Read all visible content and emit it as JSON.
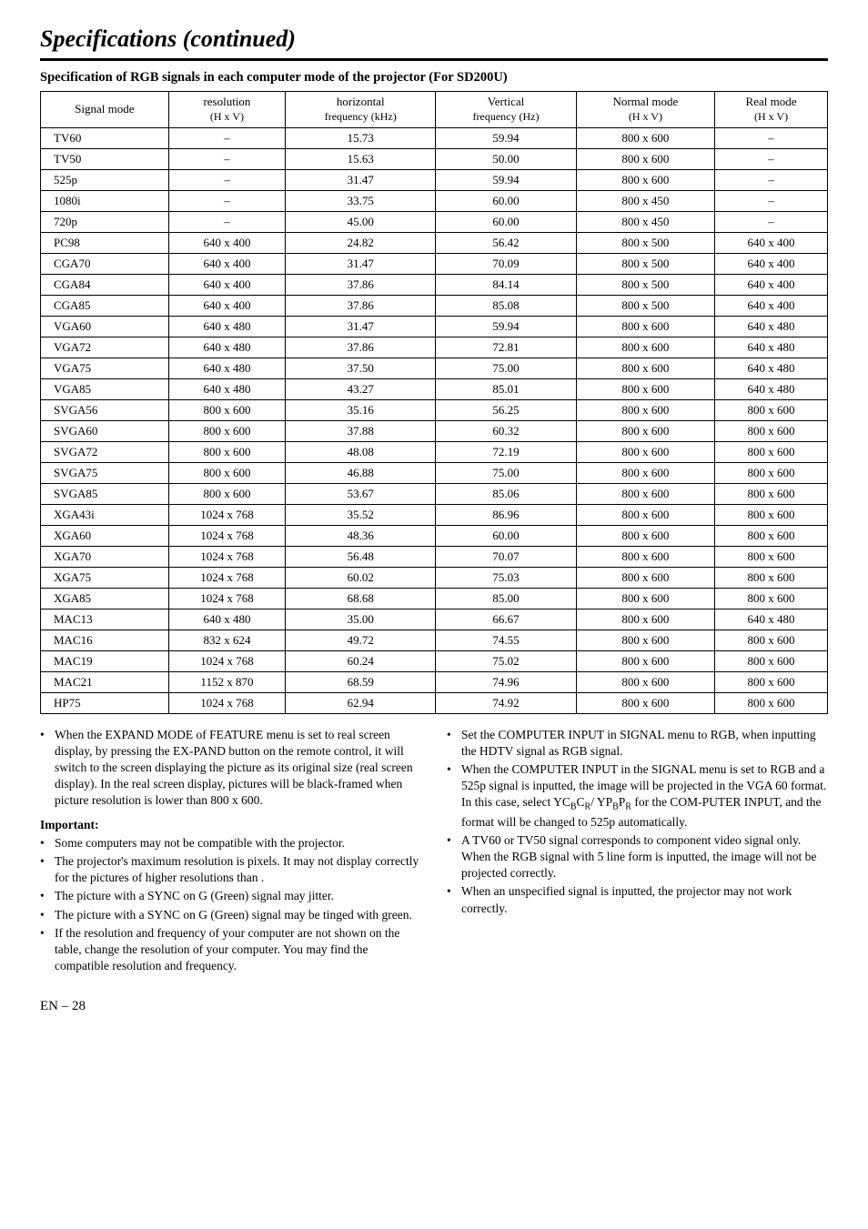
{
  "title": "Specifications (continued)",
  "subtitle": "Specification of RGB signals in each computer mode of the projector (For SD200U)",
  "table": {
    "headers": [
      {
        "line1": "Signal mode",
        "line2": ""
      },
      {
        "line1": "resolution",
        "line2": "(H x V)"
      },
      {
        "line1": "horizontal",
        "line2": "frequency (kHz)"
      },
      {
        "line1": "Vertical",
        "line2": "frequency (Hz)"
      },
      {
        "line1": "Normal mode",
        "line2": "(H x V)"
      },
      {
        "line1": "Real mode",
        "line2": "(H x V)"
      }
    ],
    "rows": [
      [
        "TV60",
        "–",
        "15.73",
        "59.94",
        "800 x 600",
        "–"
      ],
      [
        "TV50",
        "–",
        "15.63",
        "50.00",
        "800 x 600",
        "–"
      ],
      [
        "525p",
        "–",
        "31.47",
        "59.94",
        "800 x 600",
        "–"
      ],
      [
        "1080i",
        "–",
        "33.75",
        "60.00",
        "800 x 450",
        "–"
      ],
      [
        "720p",
        "–",
        "45.00",
        "60.00",
        "800 x 450",
        "–"
      ],
      [
        "PC98",
        "640 x 400",
        "24.82",
        "56.42",
        "800 x 500",
        "640 x 400"
      ],
      [
        "CGA70",
        "640 x 400",
        "31.47",
        "70.09",
        "800 x 500",
        "640 x 400"
      ],
      [
        "CGA84",
        "640 x 400",
        "37.86",
        "84.14",
        "800 x 500",
        "640 x 400"
      ],
      [
        "CGA85",
        "640 x 400",
        "37.86",
        "85.08",
        "800 x 500",
        "640 x 400"
      ],
      [
        "VGA60",
        "640 x 480",
        "31.47",
        "59.94",
        "800 x 600",
        "640 x 480"
      ],
      [
        "VGA72",
        "640 x 480",
        "37.86",
        "72.81",
        "800 x 600",
        "640 x 480"
      ],
      [
        "VGA75",
        "640 x 480",
        "37.50",
        "75.00",
        "800 x 600",
        "640 x 480"
      ],
      [
        "VGA85",
        "640 x 480",
        "43.27",
        "85.01",
        "800 x 600",
        "640 x 480"
      ],
      [
        "SVGA56",
        "800 x 600",
        "35.16",
        "56.25",
        "800 x 600",
        "800 x 600"
      ],
      [
        "SVGA60",
        "800 x 600",
        "37.88",
        "60.32",
        "800 x 600",
        "800 x 600"
      ],
      [
        "SVGA72",
        "800 x 600",
        "48.08",
        "72.19",
        "800 x 600",
        "800 x 600"
      ],
      [
        "SVGA75",
        "800 x 600",
        "46.88",
        "75.00",
        "800 x 600",
        "800 x 600"
      ],
      [
        "SVGA85",
        "800 x 600",
        "53.67",
        "85.06",
        "800 x 600",
        "800 x 600"
      ],
      [
        "XGA43i",
        "1024 x 768",
        "35.52",
        "86.96",
        "800 x 600",
        "800 x 600"
      ],
      [
        "XGA60",
        "1024 x 768",
        "48.36",
        "60.00",
        "800 x 600",
        "800 x 600"
      ],
      [
        "XGA70",
        "1024 x 768",
        "56.48",
        "70.07",
        "800 x 600",
        "800 x 600"
      ],
      [
        "XGA75",
        "1024 x 768",
        "60.02",
        "75.03",
        "800 x 600",
        "800 x 600"
      ],
      [
        "XGA85",
        "1024 x 768",
        "68.68",
        "85.00",
        "800 x 600",
        "800 x 600"
      ],
      [
        "MAC13",
        "640 x 480",
        "35.00",
        "66.67",
        "800 x 600",
        "640 x 480"
      ],
      [
        "MAC16",
        "832 x 624",
        "49.72",
        "74.55",
        "800 x 600",
        "800 x 600"
      ],
      [
        "MAC19",
        "1024 x 768",
        "60.24",
        "75.02",
        "800 x 600",
        "800 x 600"
      ],
      [
        "MAC21",
        "1152 x 870",
        "68.59",
        "74.96",
        "800 x 600",
        "800 x 600"
      ],
      [
        "HP75",
        "1024 x 768",
        "62.94",
        "74.92",
        "800 x 600",
        "800 x 600"
      ]
    ]
  },
  "left_col": {
    "top_bullet": "When the EXPAND MODE of FEATURE menu is set to real screen display, by pressing the EX-PAND button on the remote control, it will switch to the screen displaying the picture as its original size (real screen display).  In the real screen display, pictures will be black-framed when picture resolution is lower than 800 x 600.",
    "important_heading": "Important:",
    "bullets": [
      "Some computers may not be compatible with the projector.",
      "The projector's maximum resolution is                        pixels.  It may not display correctly for the pictures of higher resolutions than                           .",
      "The picture with a SYNC on G (Green) signal may jitter.",
      "The picture with a SYNC on G (Green) signal may be tinged with green.",
      "If the resolution and frequency of your computer are not shown on the table, change the resolution of your computer. You may find the compatible resolution and frequency."
    ]
  },
  "right_col": {
    "bullets": [
      "Set the COMPUTER INPUT in SIGNAL menu to RGB, when inputting the HDTV signal as RGB signal.",
      "__YCBCR__",
      "A TV60 or TV50 signal corresponds to component video signal only. When the RGB signal with 5 line form is inputted, the image will not be projected correctly.",
      "When an unspecified signal is inputted, the projector may not work correctly."
    ],
    "ycbcr_text": {
      "p1": "When the COMPUTER INPUT in the SIGNAL menu is set to RGB and a 525p signal is inputted, the image will be projected in the VGA 60 format. In this case, select YC",
      "p2": "C",
      "p3": "/ YP",
      "p4": "P",
      "p5": " for the COM-PUTER INPUT, and the format will be changed to 525p automatically."
    }
  },
  "page_num": "EN – 28"
}
